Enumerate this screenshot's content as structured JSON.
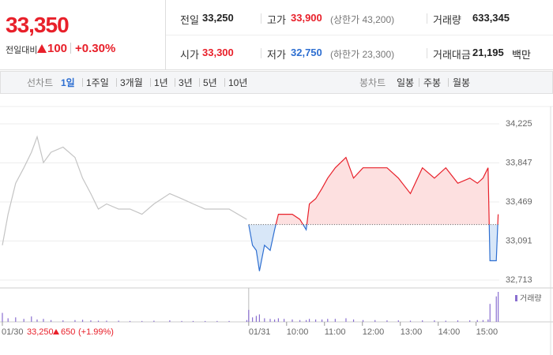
{
  "header": {
    "price": "33,350",
    "change_label": "전일대비",
    "change": "100",
    "change_pct": "+0.30%",
    "stats": [
      {
        "label": "전일",
        "value": "33,250"
      },
      {
        "label": "고가",
        "value": "33,900",
        "note": "(상한가 43,200)"
      },
      {
        "label": "거래량",
        "value": "633,345"
      },
      {
        "label": "시가",
        "value": "33,300"
      },
      {
        "label": "저가",
        "value": "32,750",
        "note": "(하한가 23,300)"
      },
      {
        "label": "거래대금",
        "value": "21,195",
        "unit": "백만"
      }
    ]
  },
  "tabs": {
    "line_label": "선차트",
    "line": [
      "1일",
      "1주일",
      "3개월",
      "1년",
      "3년",
      "5년",
      "10년"
    ],
    "candle_label": "봉차트",
    "candle": [
      "일봉",
      "주봉",
      "월봉"
    ]
  },
  "chart_data": {
    "type": "line",
    "xlim": [
      0,
      868
    ],
    "ylim": [
      32713,
      34225
    ],
    "yticks": [
      {
        "value": 34225,
        "label": "34,225"
      },
      {
        "value": 33847,
        "label": "33,847"
      },
      {
        "value": 33469,
        "label": "33,469"
      },
      {
        "value": 33091,
        "label": "33,091"
      },
      {
        "value": 32713,
        "label": "32,713"
      }
    ],
    "xticks": [
      {
        "value": 0,
        "label": "01/30"
      },
      {
        "value": 390,
        "label": "01/31"
      },
      {
        "value": 450,
        "label": "10:00"
      },
      {
        "value": 510,
        "label": "11:00"
      },
      {
        "value": 570,
        "label": "12:00"
      },
      {
        "value": 630,
        "label": "13:00"
      },
      {
        "value": 690,
        "label": "14:00"
      },
      {
        "value": 750,
        "label": "15:00"
      }
    ],
    "baseline": 33250,
    "prev_note": {
      "price": "33,250",
      "change": "650",
      "pct": "(+1.99%)"
    },
    "volume_name": "거래량",
    "volume_color": "#8a6fd0",
    "volume_lim": [
      0,
      100
    ],
    "series": [
      {
        "color": "#c4c4c4",
        "x": [
          0,
          9,
          21,
          34,
          46,
          55,
          65,
          77,
          96,
          115,
          127,
          140,
          152,
          165,
          184,
          202,
          221,
          240,
          265,
          284,
          302,
          321,
          340,
          359,
          387
        ],
        "values": [
          33050,
          33350,
          33650,
          33800,
          33950,
          34100,
          33850,
          33950,
          34000,
          33900,
          33700,
          33550,
          33400,
          33450,
          33400,
          33400,
          33350,
          33450,
          33550,
          33500,
          33450,
          33400,
          33400,
          33400,
          33300
        ],
        "volume": [
          30,
          12,
          15,
          10,
          18,
          8,
          10,
          6,
          5,
          6,
          7,
          5,
          4,
          4,
          4,
          3,
          3,
          4,
          5,
          3,
          3,
          3,
          3,
          3,
          6
        ]
      },
      {
        "color": "#e8202a",
        "color_down": "#2e6fd1",
        "fill": "#fde0e0",
        "fill_down": "#d8e7f8",
        "x": [
          390,
          396,
          402,
          407,
          415,
          424,
          431,
          437,
          446,
          459,
          471,
          481,
          486,
          496,
          506,
          515,
          527,
          544,
          556,
          571,
          590,
          609,
          627,
          646,
          665,
          684,
          702,
          721,
          740,
          752,
          761,
          769,
          772,
          782,
          785
        ],
        "values": [
          33250,
          33050,
          33000,
          32800,
          33050,
          33000,
          33200,
          33350,
          33350,
          33350,
          33300,
          33200,
          33450,
          33500,
          33600,
          33700,
          33800,
          33900,
          33700,
          33800,
          33800,
          33800,
          33700,
          33550,
          33800,
          33700,
          33800,
          33650,
          33700,
          33650,
          33700,
          33800,
          32900,
          32900,
          33350
        ],
        "volume": [
          40,
          15,
          20,
          25,
          12,
          10,
          8,
          12,
          10,
          8,
          6,
          6,
          10,
          8,
          8,
          10,
          10,
          12,
          8,
          6,
          6,
          5,
          5,
          4,
          5,
          5,
          4,
          5,
          5,
          6,
          6,
          8,
          60,
          85,
          100
        ]
      }
    ]
  }
}
